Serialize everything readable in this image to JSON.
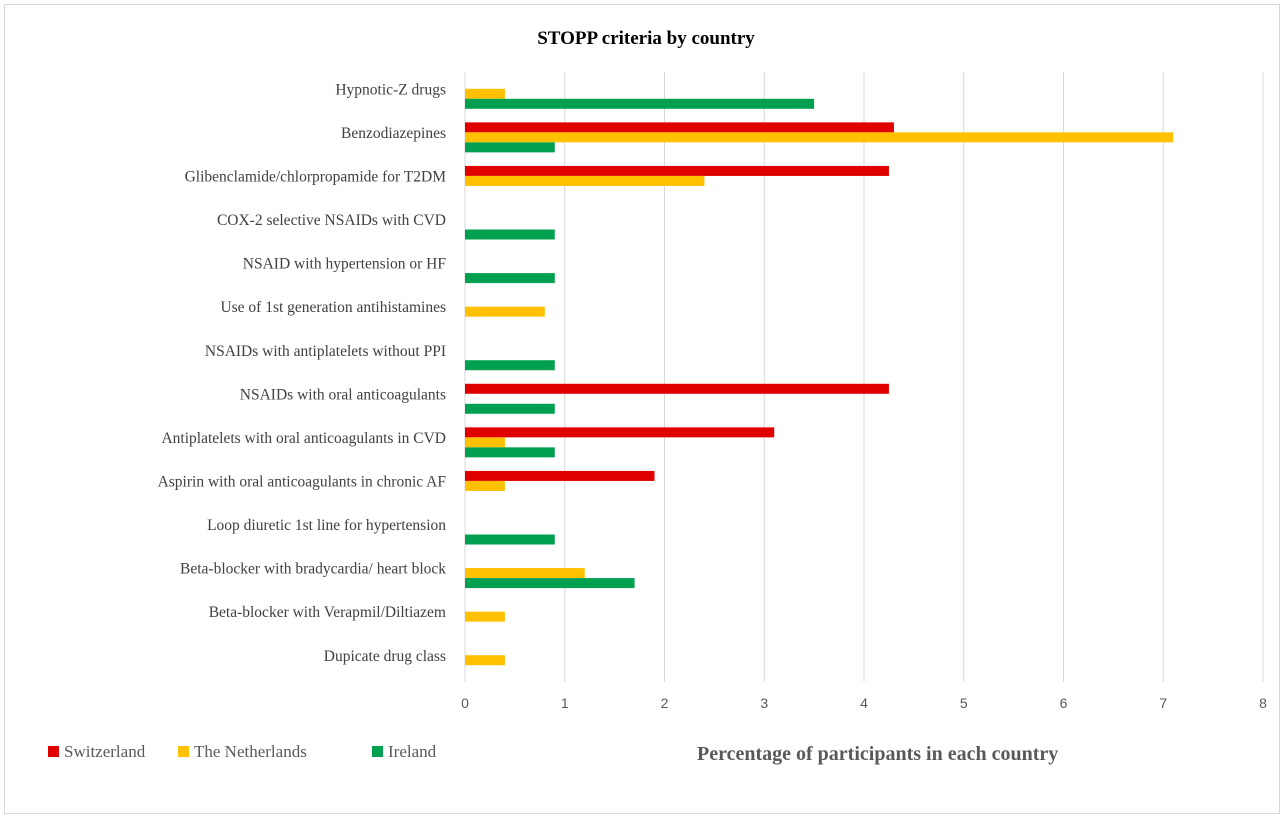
{
  "chart_data": {
    "type": "bar",
    "orientation": "horizontal",
    "title": "STOPP criteria  by country",
    "xlabel": "Percentage of participants  in each country",
    "ylabel": "",
    "xlim": [
      0,
      8
    ],
    "xticks": [
      "0",
      "1",
      "2",
      "3",
      "4",
      "5",
      "6",
      "7",
      "8"
    ],
    "grid": true,
    "legend_position": "bottom-left",
    "categories": [
      "Hypnotic-Z drugs",
      "Benzodiazepines",
      "Glibenclamide/chlorpropamide for T2DM",
      "COX-2 selective NSAIDs with CVD",
      "NSAID with hypertension or HF",
      "Use of 1st generation antihistamines",
      "NSAIDs with antiplatelets without PPI",
      "NSAIDs with oral anticoagulants",
      "Antiplatelets with oral anticoagulants in CVD",
      "Aspirin with oral anticoagulants in chronic AF",
      "Loop diuretic 1st line for hypertension",
      "Beta-blocker with bradycardia/ heart block",
      "Beta-blocker with Verapmil/Diltiazem",
      "Dupicate drug class"
    ],
    "series": [
      {
        "name": "Switzerland",
        "color": "#e00000",
        "values": [
          0,
          4.3,
          4.25,
          0,
          0,
          0,
          0,
          4.25,
          3.1,
          1.9,
          0,
          0,
          0,
          0
        ]
      },
      {
        "name": "The Netherlands",
        "color": "#ffc000",
        "values": [
          0.4,
          7.1,
          2.4,
          0,
          0,
          0.8,
          0,
          0,
          0.4,
          0.4,
          0,
          1.2,
          0.4,
          0.4
        ]
      },
      {
        "name": "Ireland",
        "color": "#00a050",
        "values": [
          3.5,
          0.9,
          0,
          0.9,
          0.9,
          0,
          0.9,
          0.9,
          0.9,
          0,
          0.9,
          1.7,
          0,
          0
        ]
      }
    ]
  }
}
